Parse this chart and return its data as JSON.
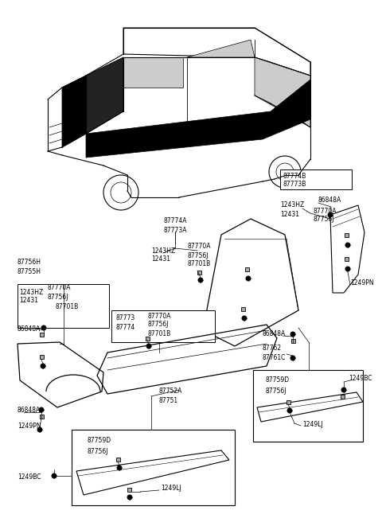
{
  "bg_color": "#ffffff",
  "line_color": "#000000",
  "fig_width": 4.8,
  "fig_height": 6.56,
  "dpi": 100,
  "part_labels": {
    "top_right_box": [
      "87774B",
      "87773B"
    ],
    "right_cluster_1": [
      "1243HZ",
      "12431"
    ],
    "right_cluster_2": [
      "86848A"
    ],
    "right_cluster_3": [
      "87770A",
      "87756J"
    ],
    "center_upper": [
      "87774A",
      "87773A"
    ],
    "center_mid_left": [
      "1243HZ",
      "12431"
    ],
    "center_mid_right": [
      "87770A",
      "87756J",
      "87701B"
    ],
    "left_upper": [
      "87756H",
      "87755H"
    ],
    "left_cluster_1": [
      "1243HZ",
      "12431"
    ],
    "left_cluster_2": [
      "87770A",
      "87756J"
    ],
    "left_cluster_3": [
      "87701B"
    ],
    "left_86848": [
      "86848A"
    ],
    "center_box_left": [
      "87773",
      "87774"
    ],
    "center_box_right": [
      "87770A",
      "87756J",
      "87701B"
    ],
    "center_lower": [
      "87752A",
      "87751"
    ],
    "bottom_left_box": [
      "87759D",
      "87756J"
    ],
    "bottom_left_lj": [
      "1249LJ"
    ],
    "bottom_left_bc": [
      "1249BC"
    ],
    "left_86848b": [
      "86848A"
    ],
    "left_pn": [
      "1249PN"
    ],
    "right_mid_1": [
      "86848A"
    ],
    "right_mid_2": [
      "87762",
      "87761C"
    ],
    "right_box": [
      "87759D",
      "87756J"
    ],
    "right_lj": [
      "1249LJ"
    ],
    "right_bc": [
      "1249BC"
    ],
    "right_pn": [
      "1249PN"
    ]
  }
}
